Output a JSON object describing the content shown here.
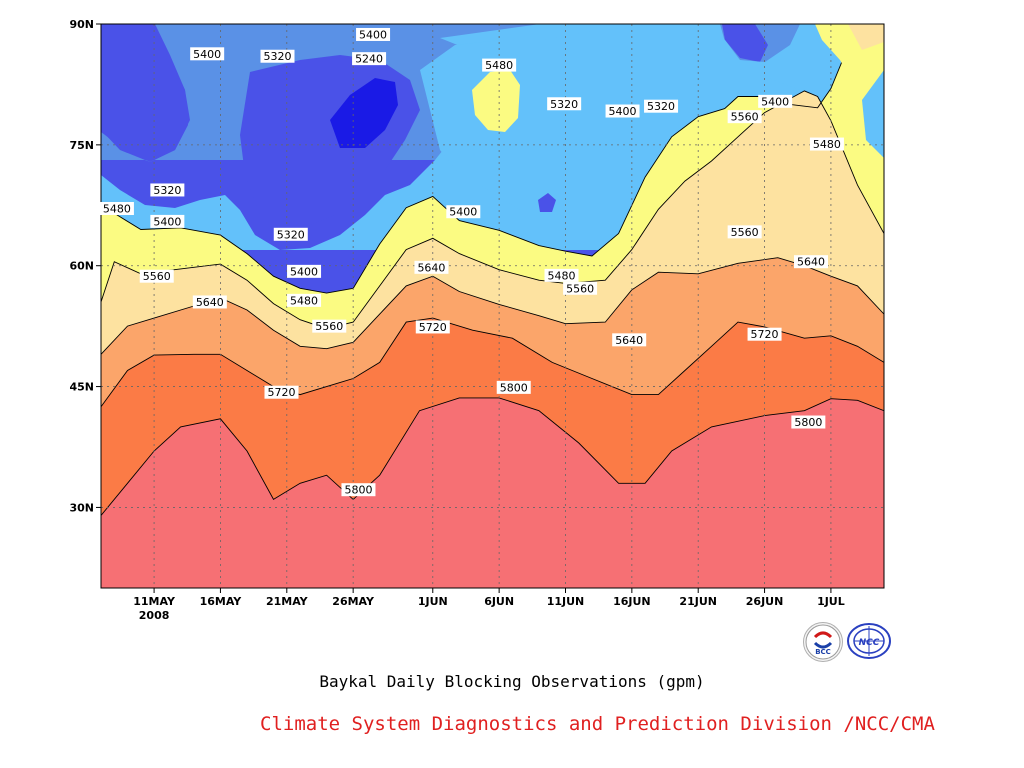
{
  "chart_data": {
    "type": "heatmap",
    "subtype": "filled-contour",
    "title": "Baykal Daily Blocking Observations (gpm)",
    "credit": "Climate System Diagnostics and Prediction Division /NCC/CMA",
    "x": {
      "ticks": [
        "11MAY",
        "16MAY",
        "21MAY",
        "26MAY",
        "1JUN",
        "6JUN",
        "11JUN",
        "16JUN",
        "21JUN",
        "26JUN",
        "1JUL"
      ],
      "tick_days": [
        4,
        9,
        14,
        19,
        25,
        30,
        35,
        40,
        45,
        50,
        55
      ],
      "year_label": "2008",
      "range": [
        "7MAY2008",
        "6JUL2008"
      ]
    },
    "y": {
      "ticks": [
        "30N",
        "45N",
        "60N",
        "75N",
        "90N"
      ],
      "tick_values": [
        30,
        45,
        60,
        75,
        90
      ],
      "range": [
        20,
        90
      ]
    },
    "grid": true,
    "levels": [
      5240,
      5320,
      5400,
      5480,
      5560,
      5640,
      5720,
      5800
    ],
    "colors": [
      "#1a1ae6",
      "#4a52e8",
      "#5a91e6",
      "#63c1fa",
      "#fbfb82",
      "#fde2a0",
      "#fba56a",
      "#fb7b46",
      "#f67074"
    ],
    "contours": [
      {
        "level": 5800,
        "points": [
          [
            0,
            29
          ],
          [
            2,
            33
          ],
          [
            4,
            37
          ],
          [
            6,
            40
          ],
          [
            9,
            41
          ],
          [
            11,
            37
          ],
          [
            13,
            31
          ],
          [
            15,
            33
          ],
          [
            17,
            34
          ],
          [
            19,
            31
          ],
          [
            21,
            34
          ],
          [
            24,
            42
          ],
          [
            27,
            43.6
          ],
          [
            30,
            43.6
          ],
          [
            33,
            42
          ],
          [
            36,
            38
          ],
          [
            39,
            33
          ],
          [
            41,
            33
          ],
          [
            43,
            37
          ],
          [
            46,
            40
          ],
          [
            50,
            41.4
          ],
          [
            53,
            42
          ],
          [
            55,
            43.5
          ],
          [
            57,
            43.3
          ],
          [
            59,
            42
          ]
        ]
      },
      {
        "level": 5720,
        "points": [
          [
            0,
            42.5
          ],
          [
            2,
            47
          ],
          [
            4,
            48.9
          ],
          [
            7,
            49
          ],
          [
            9,
            49
          ],
          [
            11,
            47
          ],
          [
            13,
            45
          ],
          [
            15,
            44
          ],
          [
            17,
            45
          ],
          [
            19,
            46
          ],
          [
            21,
            48
          ],
          [
            23,
            53
          ],
          [
            25,
            53.5
          ],
          [
            28,
            52
          ],
          [
            31,
            51
          ],
          [
            34,
            48
          ],
          [
            37,
            46
          ],
          [
            40,
            44
          ],
          [
            42,
            44
          ],
          [
            44,
            47
          ],
          [
            46,
            50
          ],
          [
            48,
            53
          ],
          [
            50,
            52.4
          ],
          [
            53,
            51
          ],
          [
            55,
            51.3
          ],
          [
            57,
            50
          ],
          [
            59,
            48
          ]
        ]
      },
      {
        "level": 5640,
        "points": [
          [
            0,
            49
          ],
          [
            2,
            52.5
          ],
          [
            4,
            53.5
          ],
          [
            7,
            55
          ],
          [
            9,
            56
          ],
          [
            11,
            54.5
          ],
          [
            13,
            52
          ],
          [
            15,
            50
          ],
          [
            17,
            49.7
          ],
          [
            19,
            50.5
          ],
          [
            21,
            54
          ],
          [
            23,
            57.5
          ],
          [
            25,
            58.7
          ],
          [
            27,
            56.8
          ],
          [
            30,
            55.2
          ],
          [
            33,
            53.8
          ],
          [
            35,
            52.8
          ],
          [
            38,
            53
          ],
          [
            40,
            57
          ],
          [
            42,
            59.2
          ],
          [
            45,
            59
          ],
          [
            48,
            60.3
          ],
          [
            51,
            61
          ],
          [
            53,
            60
          ],
          [
            55,
            58.7
          ],
          [
            57,
            57.5
          ],
          [
            59,
            54
          ]
        ]
      },
      {
        "level": 5560,
        "points": [
          [
            0,
            55.5
          ],
          [
            1,
            60.5
          ],
          [
            3,
            59
          ],
          [
            6,
            59.6
          ],
          [
            9,
            60.2
          ],
          [
            11,
            58.2
          ],
          [
            13,
            55.3
          ],
          [
            15,
            53.3
          ],
          [
            17,
            52.2
          ],
          [
            19,
            53
          ],
          [
            21,
            57.5
          ],
          [
            23,
            62
          ],
          [
            25,
            63.4
          ],
          [
            27,
            61.5
          ],
          [
            30,
            59.5
          ],
          [
            33,
            58.2
          ],
          [
            35,
            57.8
          ],
          [
            38,
            58.2
          ],
          [
            40,
            62
          ],
          [
            42,
            67
          ],
          [
            44,
            70.5
          ],
          [
            46,
            73
          ],
          [
            48,
            76
          ],
          [
            50,
            79
          ],
          [
            53,
            81.7
          ],
          [
            54,
            81
          ],
          [
            55,
            78
          ],
          [
            57,
            70
          ],
          [
            59,
            64
          ]
        ]
      },
      {
        "level": 5480,
        "points": [
          [
            0,
            67
          ],
          [
            1,
            66.5
          ],
          [
            3,
            64.5
          ],
          [
            6,
            64.7
          ],
          [
            9,
            63.8
          ],
          [
            11,
            61.5
          ],
          [
            13,
            58.7
          ],
          [
            15,
            57.2
          ],
          [
            17,
            56.6
          ],
          [
            19,
            57.2
          ],
          [
            21,
            62.7
          ],
          [
            23,
            67.2
          ],
          [
            25,
            68.6
          ],
          [
            27,
            65.6
          ],
          [
            30,
            64.4
          ],
          [
            33,
            62.5
          ],
          [
            35,
            61.8
          ],
          [
            37,
            61.2
          ],
          [
            39,
            64
          ],
          [
            41,
            71
          ],
          [
            43,
            76
          ],
          [
            45,
            78.5
          ],
          [
            47,
            79.5
          ],
          [
            48,
            81
          ],
          [
            50,
            81
          ],
          [
            52,
            80
          ],
          [
            54,
            79.6
          ],
          [
            55,
            82
          ],
          [
            56,
            86
          ],
          [
            58,
            88
          ],
          [
            59,
            86
          ]
        ]
      }
    ],
    "labels": [
      {
        "text": "5400",
        "day": 20.5,
        "lat": 88.7
      },
      {
        "text": "5400",
        "day": 8.0,
        "lat": 86.3
      },
      {
        "text": "5320",
        "day": 13.3,
        "lat": 86.0
      },
      {
        "text": "5240",
        "day": 20.2,
        "lat": 85.7
      },
      {
        "text": "5480",
        "day": 30.0,
        "lat": 84.9
      },
      {
        "text": "5320",
        "day": 34.9,
        "lat": 80.1
      },
      {
        "text": "5400",
        "day": 39.3,
        "lat": 79.2
      },
      {
        "text": "5320",
        "day": 42.2,
        "lat": 79.8
      },
      {
        "text": "5400",
        "day": 50.8,
        "lat": 80.4
      },
      {
        "text": "5560",
        "day": 48.5,
        "lat": 78.5
      },
      {
        "text": "5480",
        "day": 54.7,
        "lat": 75.1
      },
      {
        "text": "5320",
        "day": 5.0,
        "lat": 69.4
      },
      {
        "text": "5480",
        "day": 1.2,
        "lat": 67.1
      },
      {
        "text": "5400",
        "day": 5.0,
        "lat": 65.5
      },
      {
        "text": "5400",
        "day": 27.3,
        "lat": 66.7
      },
      {
        "text": "5560",
        "day": 48.5,
        "lat": 64.2
      },
      {
        "text": "5320",
        "day": 14.3,
        "lat": 63.9
      },
      {
        "text": "5480",
        "day": 34.7,
        "lat": 58.8
      },
      {
        "text": "5400",
        "day": 15.3,
        "lat": 59.3
      },
      {
        "text": "5640",
        "day": 24.9,
        "lat": 59.8
      },
      {
        "text": "5640",
        "day": 53.5,
        "lat": 60.5
      },
      {
        "text": "5560",
        "day": 4.2,
        "lat": 58.7
      },
      {
        "text": "5560",
        "day": 36.1,
        "lat": 57.2
      },
      {
        "text": "5480",
        "day": 15.3,
        "lat": 55.7
      },
      {
        "text": "5640",
        "day": 8.2,
        "lat": 55.5
      },
      {
        "text": "5560",
        "day": 17.2,
        "lat": 52.5
      },
      {
        "text": "5720",
        "day": 25.0,
        "lat": 52.4
      },
      {
        "text": "5720",
        "day": 50.0,
        "lat": 51.5
      },
      {
        "text": "5640",
        "day": 39.8,
        "lat": 50.8
      },
      {
        "text": "5800",
        "day": 31.1,
        "lat": 44.9
      },
      {
        "text": "5720",
        "day": 13.6,
        "lat": 44.3
      },
      {
        "text": "5800",
        "day": 53.3,
        "lat": 40.6
      },
      {
        "text": "5800",
        "day": 19.4,
        "lat": 32.2
      }
    ]
  }
}
